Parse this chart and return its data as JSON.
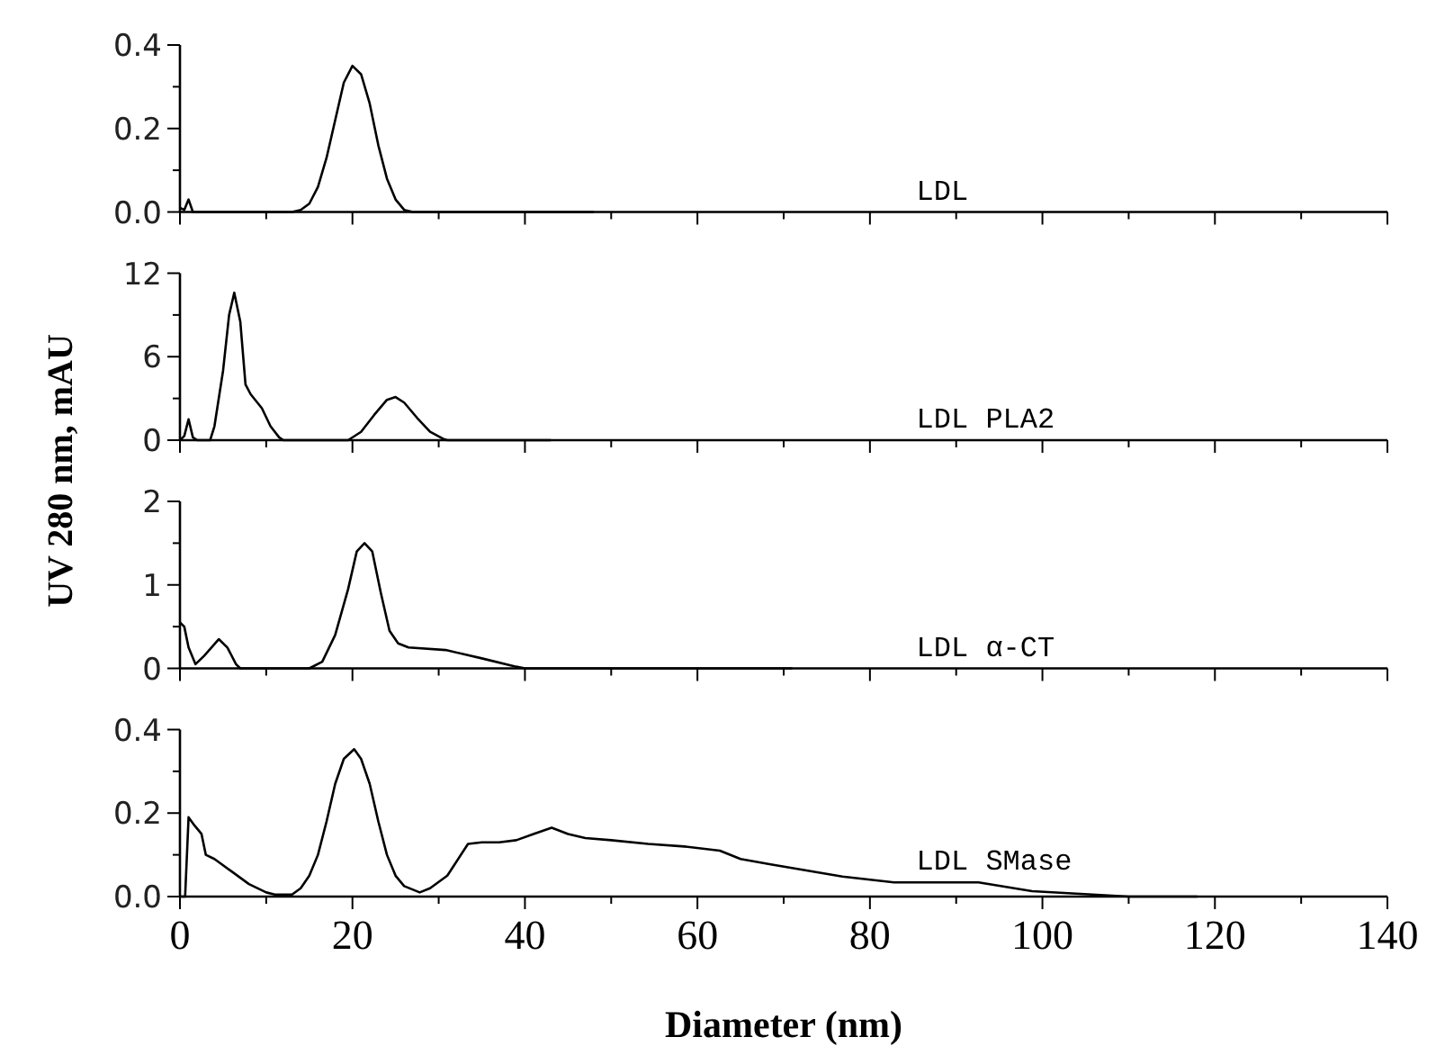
{
  "chart_data": [
    {
      "type": "line",
      "ylabel": "UV 280 nm, mAU",
      "tick_labels": "y",
      "xlim": [
        0,
        140
      ],
      "xticks": [
        0,
        {
          "value": 10,
          "label": null
        },
        20,
        {
          "value": 30,
          "label": null
        },
        40,
        {
          "value": 50,
          "label": null
        },
        60,
        {
          "value": 70,
          "label": null
        },
        80,
        {
          "value": 90,
          "label": null
        },
        100,
        {
          "value": 110,
          "label": null
        },
        120,
        {
          "value": 130,
          "label": null
        },
        140
      ],
      "ylim": [
        0,
        0.4
      ],
      "yticks": [
        {
          "value": 0,
          "label": "0.0"
        },
        {
          "value": 0.1,
          "label": null
        },
        {
          "value": 0.2,
          "label": "0.2"
        },
        {
          "value": 0.3,
          "label": null
        },
        {
          "value": 0.4,
          "label": "0.4"
        }
      ],
      "series": [
        {
          "name": "LDL",
          "color": "#000000",
          "x": [
            0,
            0.5,
            1,
            1.5,
            13,
            14,
            15,
            16,
            17,
            18,
            19,
            20,
            21,
            22,
            23,
            24,
            25,
            26,
            27,
            48
          ],
          "values": [
            0.01,
            0.005,
            0.03,
            0,
            0,
            0.005,
            0.02,
            0.06,
            0.13,
            0.22,
            0.31,
            0.35,
            0.33,
            0.26,
            0.16,
            0.08,
            0.03,
            0.005,
            0,
            0
          ]
        }
      ]
    },
    {
      "type": "line",
      "tick_labels": "y",
      "xlim": [
        0,
        140
      ],
      "xticks": [
        0,
        {
          "value": 10,
          "label": null
        },
        20,
        {
          "value": 30,
          "label": null
        },
        40,
        {
          "value": 50,
          "label": null
        },
        60,
        {
          "value": 70,
          "label": null
        },
        80,
        {
          "value": 90,
          "label": null
        },
        100,
        {
          "value": 110,
          "label": null
        },
        120,
        {
          "value": 130,
          "label": null
        },
        140
      ],
      "ylim": [
        0,
        12
      ],
      "yticks": [
        0,
        {
          "value": 3,
          "label": null
        },
        6,
        {
          "value": 9,
          "label": null
        },
        12
      ],
      "series": [
        {
          "name": "LDL PLA2",
          "color": "#000000",
          "x": [
            0,
            0.5,
            1,
            1.5,
            2,
            3.5,
            4,
            5,
            5.7,
            6.3,
            7,
            7.6,
            8.2,
            9.5,
            10.5,
            11.5,
            12,
            19.5,
            21,
            22.5,
            24,
            25,
            26,
            27.5,
            29,
            30.5,
            31,
            43
          ],
          "values": [
            0,
            0.3,
            1.5,
            0.2,
            0,
            0,
            1,
            5,
            9,
            10.6,
            8.5,
            4,
            3.3,
            2.3,
            1,
            0.2,
            0,
            0,
            0.6,
            1.8,
            2.9,
            3.1,
            2.7,
            1.6,
            0.6,
            0.1,
            0,
            0
          ]
        }
      ]
    },
    {
      "type": "line",
      "tick_labels": "y",
      "xlim": [
        0,
        140
      ],
      "xticks": [
        0,
        {
          "value": 10,
          "label": null
        },
        20,
        {
          "value": 30,
          "label": null
        },
        40,
        {
          "value": 50,
          "label": null
        },
        60,
        {
          "value": 70,
          "label": null
        },
        80,
        {
          "value": 90,
          "label": null
        },
        100,
        {
          "value": 110,
          "label": null
        },
        120,
        {
          "value": 130,
          "label": null
        },
        140
      ],
      "ylim": [
        0,
        2
      ],
      "yticks": [
        0,
        {
          "value": 0.5,
          "label": null
        },
        1,
        {
          "value": 1.5,
          "label": null
        },
        2
      ],
      "series": [
        {
          "name": "LDL α-CT",
          "color": "#000000",
          "x": [
            0,
            0.5,
            1,
            1.8,
            2.8,
            4.5,
            5.5,
            6.5,
            7,
            15,
            16.5,
            18,
            19.5,
            20.5,
            21.4,
            22.3,
            23.3,
            24.3,
            25.3,
            26.5,
            30.8,
            35,
            39,
            40,
            71
          ],
          "values": [
            0.55,
            0.5,
            0.25,
            0.05,
            0.15,
            0.35,
            0.25,
            0.05,
            0,
            0,
            0.08,
            0.4,
            0.95,
            1.4,
            1.5,
            1.4,
            0.9,
            0.45,
            0.3,
            0.25,
            0.22,
            0.12,
            0.02,
            0,
            0
          ]
        }
      ]
    },
    {
      "type": "line",
      "xlabel": "Diameter (nm)",
      "xlim": [
        0,
        140
      ],
      "xticks": [
        0,
        {
          "value": 10,
          "label": null
        },
        20,
        {
          "value": 30,
          "label": null
        },
        40,
        {
          "value": 50,
          "label": null
        },
        60,
        {
          "value": 70,
          "label": null
        },
        80,
        {
          "value": 90,
          "label": null
        },
        100,
        {
          "value": 110,
          "label": null
        },
        120,
        {
          "value": 130,
          "label": null
        },
        140
      ],
      "ylim": [
        0,
        0.4
      ],
      "yticks": [
        {
          "value": 0,
          "label": "0.0"
        },
        {
          "value": 0.1,
          "label": null
        },
        {
          "value": 0.2,
          "label": "0.2"
        },
        {
          "value": 0.3,
          "label": null
        },
        {
          "value": 0.4,
          "label": "0.4"
        }
      ],
      "series": [
        {
          "name": "LDL SMase",
          "color": "#000000",
          "x": [
            0,
            0.6,
            1,
            1.7,
            2.5,
            3,
            4,
            6,
            8,
            10,
            11,
            13,
            14,
            15,
            16,
            17,
            18,
            19,
            20.2,
            21,
            22,
            23,
            24,
            25,
            26,
            27.8,
            29,
            31,
            33.4,
            35,
            37,
            39,
            41,
            43.1,
            45,
            47,
            50,
            54.3,
            58.5,
            62.6,
            65,
            68.5,
            76.8,
            82.8,
            92.6,
            98.8,
            105.8,
            110,
            118
          ],
          "values": [
            0,
            0,
            0.19,
            0.17,
            0.15,
            0.1,
            0.09,
            0.06,
            0.03,
            0.01,
            0.005,
            0.005,
            0.02,
            0.05,
            0.1,
            0.18,
            0.27,
            0.33,
            0.353,
            0.33,
            0.27,
            0.18,
            0.1,
            0.05,
            0.025,
            0.01,
            0.02,
            0.05,
            0.126,
            0.13,
            0.13,
            0.135,
            0.15,
            0.165,
            0.15,
            0.14,
            0.135,
            0.126,
            0.12,
            0.11,
            0.09,
            0.077,
            0.048,
            0.034,
            0.034,
            0.013,
            0.005,
            0,
            0
          ]
        }
      ]
    }
  ]
}
